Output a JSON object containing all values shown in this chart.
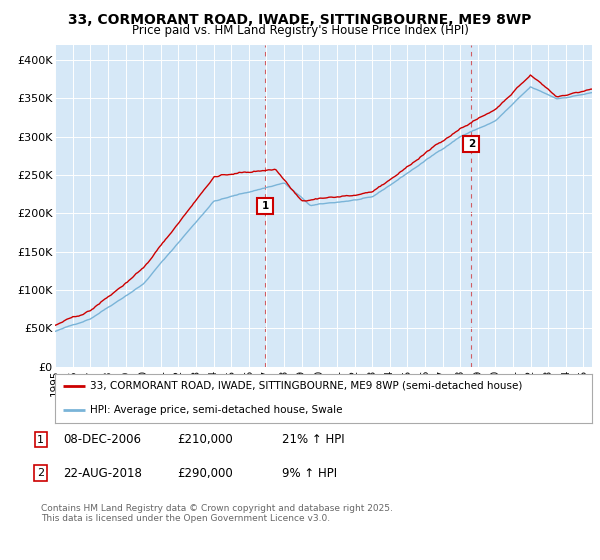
{
  "title": "33, CORMORANT ROAD, IWADE, SITTINGBOURNE, ME9 8WP",
  "subtitle": "Price paid vs. HM Land Registry's House Price Index (HPI)",
  "ylim": [
    0,
    420000
  ],
  "yticks": [
    0,
    50000,
    100000,
    150000,
    200000,
    250000,
    300000,
    350000,
    400000
  ],
  "ytick_labels": [
    "£0",
    "£50K",
    "£100K",
    "£150K",
    "£200K",
    "£250K",
    "£300K",
    "£350K",
    "£400K"
  ],
  "bg_color": "#d6e8f7",
  "red_color": "#cc0000",
  "blue_color": "#7ab4d8",
  "marker1_x": 2006.92,
  "marker1_y": 210000,
  "marker2_x": 2018.64,
  "marker2_y": 290000,
  "legend_line1": "33, CORMORANT ROAD, IWADE, SITTINGBOURNE, ME9 8WP (semi-detached house)",
  "legend_line2": "HPI: Average price, semi-detached house, Swale",
  "footer": "Contains HM Land Registry data © Crown copyright and database right 2025.\nThis data is licensed under the Open Government Licence v3.0.",
  "xstart": 1995.0,
  "xend": 2025.5,
  "xtick_years": [
    1995,
    1996,
    1997,
    1998,
    1999,
    2000,
    2001,
    2002,
    2003,
    2004,
    2005,
    2006,
    2007,
    2008,
    2009,
    2010,
    2011,
    2012,
    2013,
    2014,
    2015,
    2016,
    2017,
    2018,
    2019,
    2020,
    2021,
    2022,
    2023,
    2024,
    2025
  ]
}
